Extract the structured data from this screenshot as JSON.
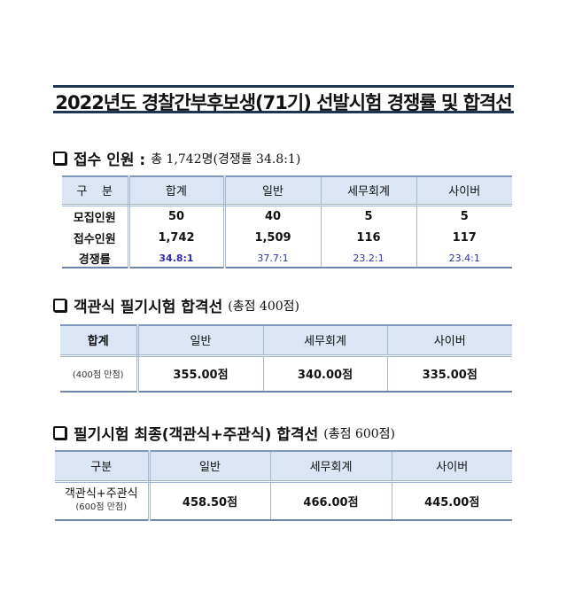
{
  "title": "2022년도 경찰간부후보생(71기) 선발시험 경쟁률 및 합격선",
  "section1": {
    "heading": "접수 인원 :",
    "sub": "총 1,742명(경쟁률 34.8:1)",
    "headers": [
      "구    분",
      "합계",
      "일반",
      "세무회계",
      "사이버"
    ],
    "rows": [
      [
        "모집인원",
        "50",
        "40",
        "5",
        "5"
      ],
      [
        "접수인원",
        "1,742",
        "1,509",
        "116",
        "117"
      ],
      [
        "경쟁률",
        "34.8:1",
        "37.7:1",
        "23.2:1",
        "23.4:1"
      ]
    ]
  },
  "section2": {
    "heading": "객관식 필기시험 합격선",
    "sub": "(총점 400점)",
    "headers": [
      "합계",
      "일반",
      "세무회계",
      "사이버"
    ],
    "row": [
      "(400점 만점)",
      "355.00점",
      "340.00점",
      "335.00점"
    ]
  },
  "section3": {
    "heading": "필기시험 최종(객관식+주관식) 합격선",
    "sub": "(총점 600점)",
    "headers": [
      "구분",
      "일반",
      "세무회계",
      "사이버"
    ],
    "row_label": "객관식+주관식",
    "row_label_sub": "(600점 만점)",
    "row": [
      "458.50점",
      "466.00점",
      "445.00점"
    ]
  },
  "colors": {
    "header_bg": "#dce5f3",
    "ratio_text": "#2b2fb0",
    "title_rule": "#1f3550"
  }
}
